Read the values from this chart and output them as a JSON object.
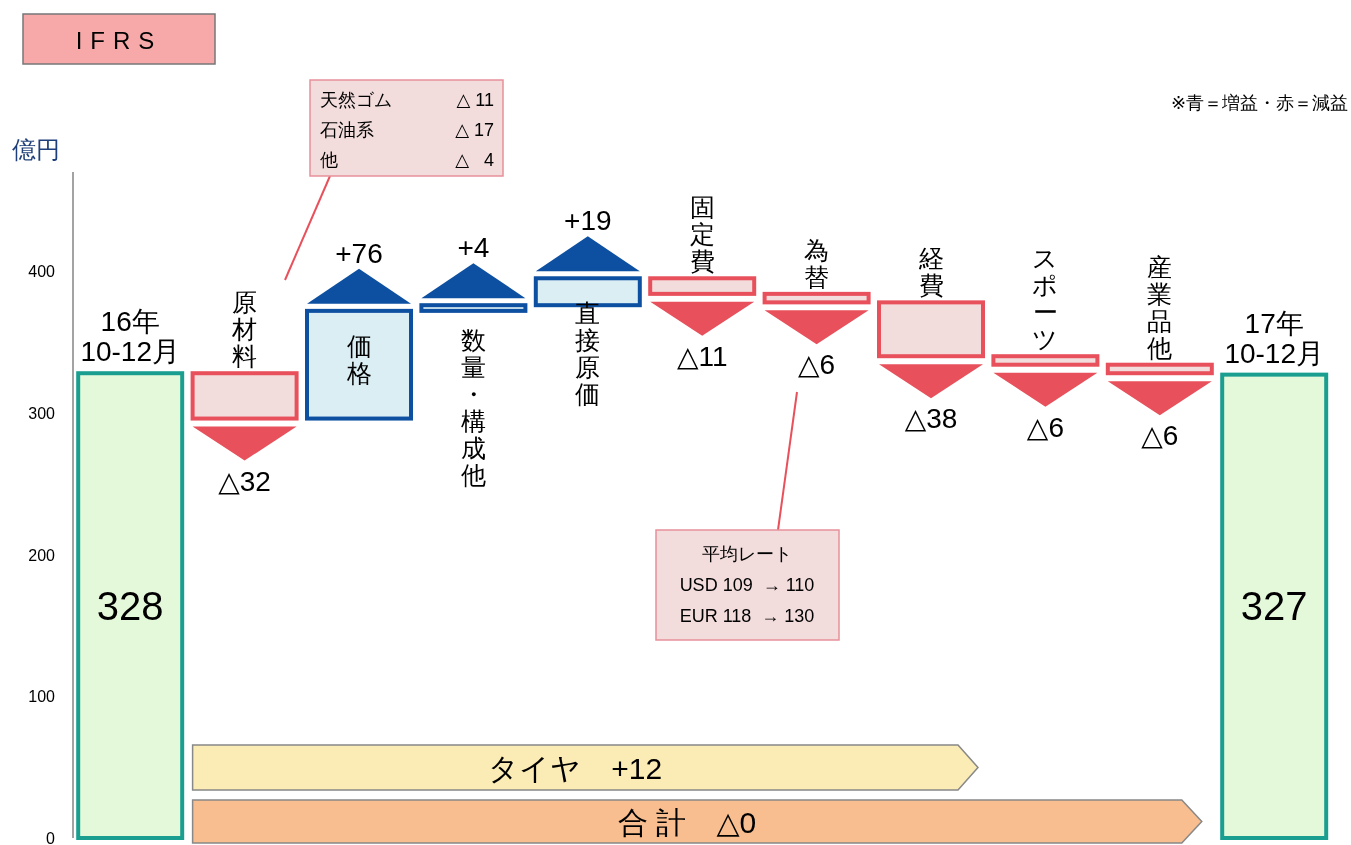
{
  "chart_data": {
    "type": "bar",
    "title": "IFRS",
    "ylabel": "億円",
    "categories": [
      "16年\n10-12月",
      "原材料",
      "価格",
      "数量・構成他",
      "直接原価",
      "固定費",
      "為替",
      "経費",
      "スポーツ",
      "産業品他",
      "17年\n10-12月"
    ],
    "values": [
      328,
      -32,
      76,
      4,
      19,
      -11,
      -6,
      -38,
      -6,
      -6,
      327
    ],
    "base": [
      0,
      328,
      296,
      372,
      376,
      395,
      384,
      378,
      340,
      334,
      0
    ],
    "colors": [
      "#e4f9da",
      "#f2dcdc",
      "#dbeef4",
      "#dbeef4",
      "#dbeef4",
      "#f2dcdc",
      "#f2dcdc",
      "#f2dcdc",
      "#f2dcdc",
      "#f2dcdc",
      "#e4f9da"
    ],
    "value_labels": [
      "328",
      "△32",
      "+76",
      "+4",
      "+19",
      "△11",
      "△6",
      "△38",
      "△6",
      "△6",
      "327"
    ],
    "ylim": [
      0,
      470
    ],
    "yticks": [
      0,
      100,
      200,
      300,
      400
    ],
    "annotations": [
      "※青＝増益・赤＝減益",
      "天然ゴム\t△ 11\n石油系\t△ 17\n他\t△   4",
      "平均レート\nUSD 109  → 110\nEUR 118  → 130",
      "タイヤ　+12",
      "合 計　△0"
    ]
  }
}
